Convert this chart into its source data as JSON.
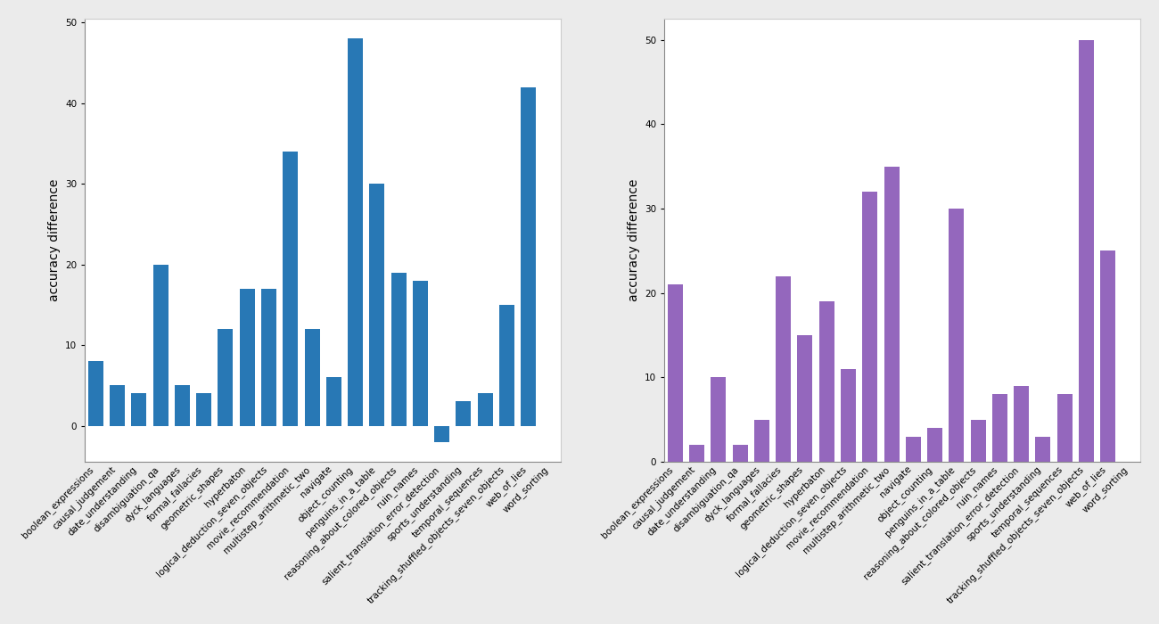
{
  "chart1_categories": [
    "boolean_expressions",
    "causal_judgement",
    "date_understanding",
    "disambiguation_qa",
    "dyck_languages",
    "formal_fallacies",
    "geometric_shapes",
    "hyperbaton",
    "logical_deduction_seven_objects",
    "movie_recommendation",
    "multistep_arithmetic_two",
    "navigate",
    "object_counting",
    "penguins_in_a_table",
    "reasoning_about_colored_objects",
    "ruin_names",
    "salient_translation_error_detection",
    "sports_understanding",
    "temporal_sequences",
    "tracking_shuffled_objects_seven_objects",
    "web_of_lies",
    "word_sorting"
  ],
  "chart1_values": [
    8,
    5,
    4,
    20,
    5,
    4,
    12,
    17,
    17,
    34,
    12,
    6,
    48,
    30,
    19,
    18,
    -2,
    3,
    4,
    15,
    42,
    0
  ],
  "chart1_color": "#2878b5",
  "chart2_categories": [
    "boolean_expressions",
    "causal_judgement",
    "date_understanding",
    "disambiguation_qa",
    "dyck_languages",
    "formal_fallacies",
    "geometric_shapes",
    "hyperbaton",
    "logical_deduction_seven_objects",
    "movie_recommendation",
    "multistep_arithmetic_two",
    "navigate",
    "object_counting",
    "penguins_in_a_table",
    "reasoning_about_colored_objects",
    "ruin_names",
    "salient_translation_error_detection",
    "sports_understanding",
    "temporal_sequences",
    "tracking_shuffled_objects_seven_objects",
    "web_of_lies",
    "word_sorting"
  ],
  "chart2_values": [
    21,
    2,
    10,
    2,
    5,
    22,
    15,
    19,
    11,
    32,
    35,
    3,
    4,
    30,
    5,
    8,
    9,
    3,
    8,
    50,
    25,
    0
  ],
  "chart2_color": "#9467bd",
  "ylabel": "accuracy difference",
  "figure_bg": "#ebebeb",
  "axes_bg": "white",
  "tick_fontsize": 7.5,
  "ylabel_fontsize": 10,
  "bar_width": 0.7
}
